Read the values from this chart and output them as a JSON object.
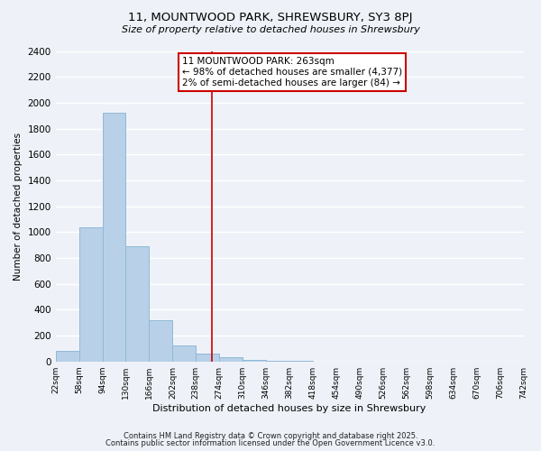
{
  "title": "11, MOUNTWOOD PARK, SHREWSBURY, SY3 8PJ",
  "subtitle": "Size of property relative to detached houses in Shrewsbury",
  "xlabel": "Distribution of detached houses by size in Shrewsbury",
  "ylabel": "Number of detached properties",
  "bin_edges": [
    22,
    58,
    94,
    130,
    166,
    202,
    238,
    274,
    310,
    346,
    382,
    418,
    454,
    490,
    526,
    562,
    598,
    634,
    670,
    706,
    742
  ],
  "bin_counts": [
    85,
    1040,
    1920,
    890,
    320,
    120,
    60,
    30,
    15,
    5,
    2,
    0,
    0,
    0,
    0,
    0,
    0,
    0,
    0,
    0
  ],
  "bar_color": "#b8d0e8",
  "bar_edgecolor": "#90b8d8",
  "vline_x": 263,
  "vline_color": "#cc0000",
  "ylim": [
    0,
    2400
  ],
  "yticks": [
    0,
    200,
    400,
    600,
    800,
    1000,
    1200,
    1400,
    1600,
    1800,
    2000,
    2200,
    2400
  ],
  "annotation_title": "11 MOUNTWOOD PARK: 263sqm",
  "annotation_line1": "← 98% of detached houses are smaller (4,377)",
  "annotation_line2": "2% of semi-detached houses are larger (84) →",
  "annotation_box_color": "#ffffff",
  "annotation_box_edgecolor": "#cc0000",
  "footnote1": "Contains HM Land Registry data © Crown copyright and database right 2025.",
  "footnote2": "Contains public sector information licensed under the Open Government Licence v3.0.",
  "background_color": "#eef2f8",
  "grid_color": "#ffffff",
  "plot_bg_color": "#eef2f8"
}
